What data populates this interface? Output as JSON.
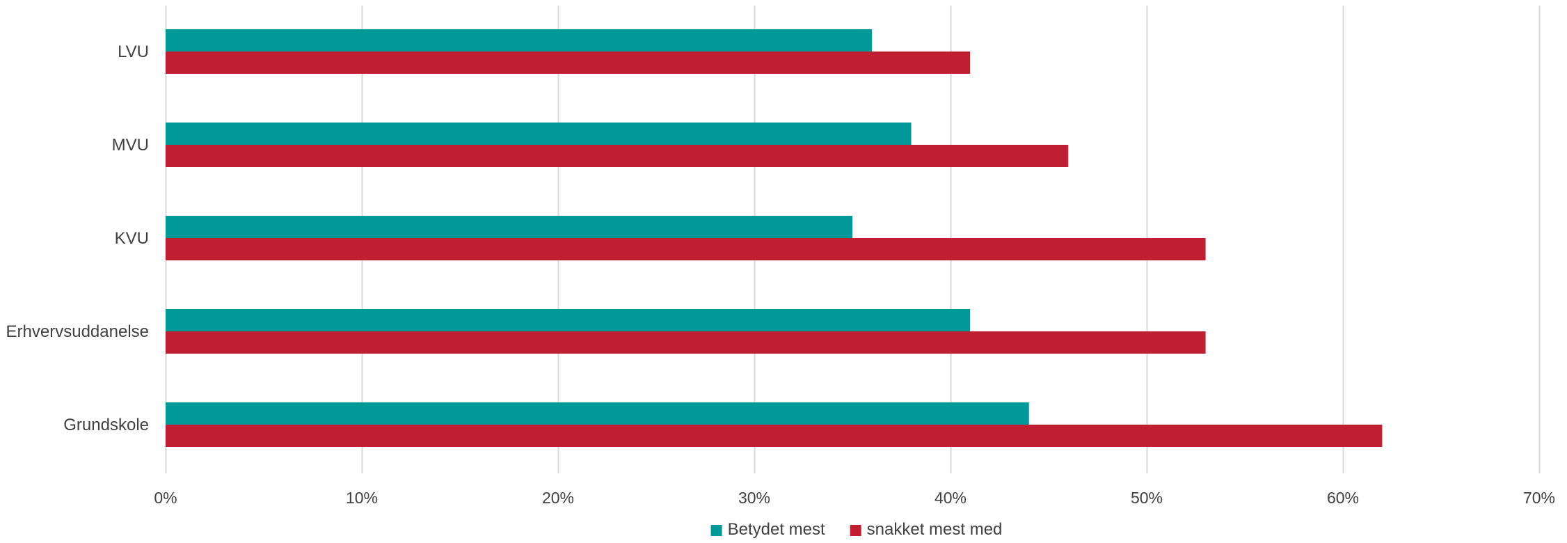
{
  "chart_data": {
    "type": "bar",
    "orientation": "horizontal",
    "categories": [
      "LVU",
      "MVU",
      "KVU",
      "Erhvervsuddanelse",
      "Grundskole"
    ],
    "series": [
      {
        "name": "Betydet mest",
        "color": "#009899",
        "values": [
          36,
          38,
          35,
          41,
          44
        ]
      },
      {
        "name": "snakket mest med",
        "color": "#c01f32",
        "values": [
          41,
          46,
          53,
          53,
          62
        ]
      }
    ],
    "xlim": [
      0,
      70
    ],
    "x_ticks": [
      0,
      10,
      20,
      30,
      40,
      50,
      60,
      70
    ],
    "x_tick_labels": [
      "0%",
      "10%",
      "20%",
      "30%",
      "40%",
      "50%",
      "60%",
      "70%"
    ],
    "grid": "vertical",
    "legend_position": "bottom",
    "colors": {
      "grid": "#d9d9d9",
      "text": "#404040"
    }
  }
}
